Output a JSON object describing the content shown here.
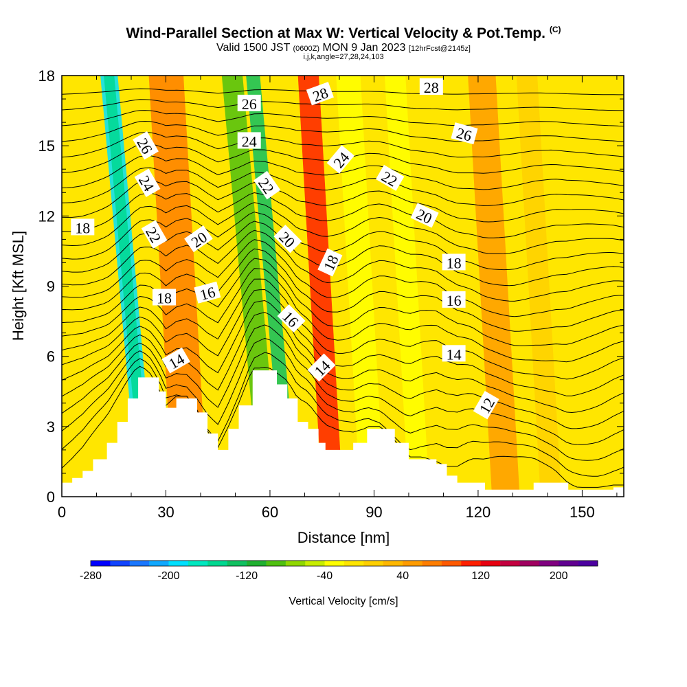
{
  "header": {
    "title": "Wind-Parallel Section at Max W: Vertical Velocity & Pot.Temp.",
    "copyright": "(C)",
    "valid_prefix": "Valid 1500 JST",
    "valid_utc": "(0600Z)",
    "valid_date": "MON 9 Jan 2023",
    "forecast": "[12hrFcst@2145z]",
    "indices": "i,j,k,angle=27,28,24,103"
  },
  "chart_data": {
    "type": "contour-section",
    "xlabel": "Distance [nm]",
    "ylabel": "Height [Kft MSL]",
    "xlim": [
      0,
      162
    ],
    "ylim": [
      0,
      18
    ],
    "x_ticks": [
      0,
      30,
      60,
      90,
      120,
      150
    ],
    "y_ticks": [
      0,
      3,
      6,
      9,
      12,
      15,
      18
    ],
    "terrain": [
      [
        0,
        0.6
      ],
      [
        3,
        0.8
      ],
      [
        6,
        1.1
      ],
      [
        9,
        1.6
      ],
      [
        13,
        2.3
      ],
      [
        16,
        3.2
      ],
      [
        19,
        4.2
      ],
      [
        22,
        5.1
      ],
      [
        25,
        5.1
      ],
      [
        28,
        4.5
      ],
      [
        30,
        3.8
      ],
      [
        33,
        4.2
      ],
      [
        36,
        4.2
      ],
      [
        39,
        3.6
      ],
      [
        42,
        2.7
      ],
      [
        45,
        2.0
      ],
      [
        48,
        2.9
      ],
      [
        51,
        3.9
      ],
      [
        55,
        5.4
      ],
      [
        59,
        5.4
      ],
      [
        62,
        4.8
      ],
      [
        65,
        4.2
      ],
      [
        68,
        3.2
      ],
      [
        71,
        2.9
      ],
      [
        74,
        2.3
      ],
      [
        76,
        2.0
      ],
      [
        80,
        2.0
      ],
      [
        84,
        2.3
      ],
      [
        88,
        2.9
      ],
      [
        92,
        2.9
      ],
      [
        96,
        2.3
      ],
      [
        100,
        1.6
      ],
      [
        104,
        1.6
      ],
      [
        108,
        1.4
      ],
      [
        111,
        0.9
      ],
      [
        114,
        0.6
      ],
      [
        118,
        0.6
      ],
      [
        122,
        0.3
      ],
      [
        126,
        0.3
      ],
      [
        130,
        0.3
      ],
      [
        136,
        0.6
      ],
      [
        142,
        0.6
      ],
      [
        146,
        0.3
      ],
      [
        150,
        0.3
      ],
      [
        155,
        0.3
      ],
      [
        159,
        0.4
      ],
      [
        162,
        0.4
      ]
    ],
    "vertical_velocity_bands": [
      {
        "x": 22,
        "width": 5,
        "value": -200
      },
      {
        "x": 23,
        "width": 3,
        "value": -160
      },
      {
        "x": 32,
        "width": 10,
        "value": 60
      },
      {
        "x": 57,
        "width": 6,
        "value": -100
      },
      {
        "x": 64,
        "width": 4,
        "value": -140
      },
      {
        "x": 75,
        "width": 6,
        "value": 110
      },
      {
        "x": 86,
        "width": 7,
        "value": -40
      },
      {
        "x": 100,
        "width": 6,
        "value": -30
      },
      {
        "x": 124,
        "width": 8,
        "value": 50
      },
      {
        "x": 138,
        "width": 6,
        "value": 20
      }
    ],
    "potential_temperature_labels": [
      {
        "text": "18",
        "x": 6,
        "y": 11.5,
        "angle": 0
      },
      {
        "text": "26",
        "x": 24,
        "y": 15.0,
        "angle": 60
      },
      {
        "text": "24",
        "x": 24.5,
        "y": 13.4,
        "angle": 60
      },
      {
        "text": "22",
        "x": 26.5,
        "y": 11.2,
        "angle": 60
      },
      {
        "text": "18",
        "x": 29.5,
        "y": 8.5,
        "angle": 0
      },
      {
        "text": "14",
        "x": 33,
        "y": 5.8,
        "angle": -30
      },
      {
        "text": "20",
        "x": 39.5,
        "y": 11.0,
        "angle": -35
      },
      {
        "text": "16",
        "x": 42,
        "y": 8.7,
        "angle": -15
      },
      {
        "text": "26",
        "x": 54,
        "y": 16.8,
        "angle": 0
      },
      {
        "text": "24",
        "x": 54,
        "y": 15.2,
        "angle": 0
      },
      {
        "text": "22",
        "x": 59,
        "y": 13.3,
        "angle": 55
      },
      {
        "text": "20",
        "x": 65,
        "y": 11.0,
        "angle": 45
      },
      {
        "text": "16",
        "x": 66,
        "y": 7.6,
        "angle": 45
      },
      {
        "text": "28",
        "x": 74.5,
        "y": 17.2,
        "angle": -20
      },
      {
        "text": "24",
        "x": 80.5,
        "y": 14.4,
        "angle": -50
      },
      {
        "text": "18",
        "x": 77.5,
        "y": 10.0,
        "angle": -65
      },
      {
        "text": "14",
        "x": 75,
        "y": 5.5,
        "angle": -45
      },
      {
        "text": "22",
        "x": 94.5,
        "y": 13.6,
        "angle": 30
      },
      {
        "text": "28",
        "x": 106.5,
        "y": 17.5,
        "angle": 0
      },
      {
        "text": "20",
        "x": 104.5,
        "y": 12.0,
        "angle": 25
      },
      {
        "text": "26",
        "x": 116,
        "y": 15.5,
        "angle": 15
      },
      {
        "text": "18",
        "x": 113,
        "y": 10.0,
        "angle": 0
      },
      {
        "text": "16",
        "x": 113,
        "y": 8.4,
        "angle": 0
      },
      {
        "text": "14",
        "x": 113,
        "y": 6.1,
        "angle": 0
      },
      {
        "text": "12",
        "x": 122.5,
        "y": 3.9,
        "angle": -60
      }
    ],
    "colorbar": {
      "title": "Vertical Velocity [cm/s]",
      "min": -280,
      "max": 240,
      "step": 20,
      "labels": [
        "-280",
        "-200",
        "-120",
        "-40",
        "40",
        "120",
        "200"
      ],
      "label_values": [
        -280,
        -200,
        -120,
        -40,
        40,
        120,
        200
      ],
      "colors": [
        "#0000ff",
        "#1144ff",
        "#1a77ff",
        "#10a8ff",
        "#00e0ff",
        "#00e8c0",
        "#00d890",
        "#10c060",
        "#20b030",
        "#50c010",
        "#90d800",
        "#c8ee00",
        "#ffff00",
        "#ffe600",
        "#ffd000",
        "#ffb800",
        "#ff9c00",
        "#ff7e00",
        "#ff5a00",
        "#ff2000",
        "#e80010",
        "#c40040",
        "#a00060",
        "#800080",
        "#600090",
        "#4c00a0"
      ]
    }
  }
}
